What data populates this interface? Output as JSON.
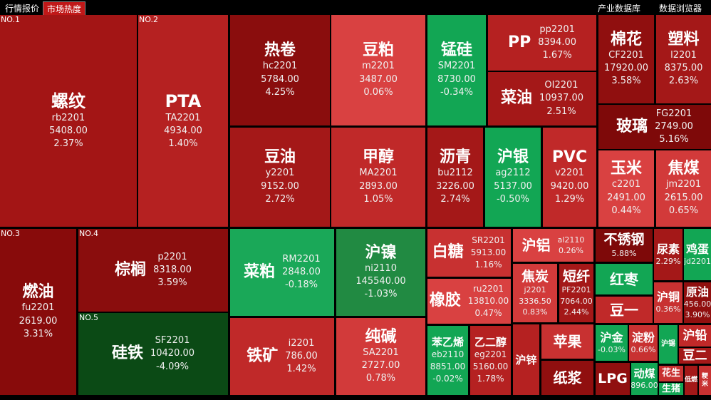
{
  "topbar": {
    "tabs": [
      "行情报价",
      "市场热度"
    ],
    "links": [
      "产业数据库",
      "数据浏览器"
    ]
  },
  "tiles": [
    {
      "name": "螺纹",
      "code": "rb2201",
      "price": "5408.00",
      "change": "2.37%",
      "rank": "NO.1",
      "color": "#a31515"
    },
    {
      "name": "PTA",
      "code": "TA2201",
      "price": "4934.00",
      "change": "1.40%",
      "rank": "NO.2",
      "color": "#b52121"
    },
    {
      "name": "热卷",
      "code": "hc2201",
      "price": "5784.00",
      "change": "4.25%",
      "color": "#8a0d0d"
    },
    {
      "name": "豆粕",
      "code": "m2201",
      "price": "3487.00",
      "change": "0.06%",
      "color": "#d94141"
    },
    {
      "name": "锰硅",
      "code": "SM2201",
      "price": "8730.00",
      "change": "-0.34%",
      "color": "#12a654"
    },
    {
      "name": "PP",
      "code": "pp2201",
      "price": "8394.00",
      "change": "1.67%",
      "color": "#b52121"
    },
    {
      "name": "菜油",
      "code": "OI2201",
      "price": "10937.00",
      "change": "2.51%",
      "color": "#a41818"
    },
    {
      "name": "棉花",
      "code": "CF2201",
      "price": "17920.00",
      "change": "3.58%",
      "color": "#900f0f"
    },
    {
      "name": "塑料",
      "code": "l2201",
      "price": "8375.00",
      "change": "2.63%",
      "color": "#a41818"
    },
    {
      "name": "玻璃",
      "code": "FG2201",
      "price": "2749.00",
      "change": "5.16%",
      "color": "#7e0909"
    },
    {
      "name": "豆油",
      "code": "y2201",
      "price": "9152.00",
      "change": "2.72%",
      "color": "#a41818"
    },
    {
      "name": "甲醇",
      "code": "MA2201",
      "price": "2893.00",
      "change": "1.05%",
      "color": "#c02929"
    },
    {
      "name": "沥青",
      "code": "bu2112",
      "price": "3226.00",
      "change": "2.74%",
      "color": "#a41818"
    },
    {
      "name": "沪银",
      "code": "ag2112",
      "price": "5137.00",
      "change": "-0.50%",
      "color": "#12a654"
    },
    {
      "name": "PVC",
      "code": "v2201",
      "price": "9420.00",
      "change": "1.29%",
      "color": "#c02929"
    },
    {
      "name": "玉米",
      "code": "c2201",
      "price": "2491.00",
      "change": "0.44%",
      "color": "#d94141"
    },
    {
      "name": "焦煤",
      "code": "jm2201",
      "price": "2615.00",
      "change": "0.65%",
      "color": "#d23a3a"
    },
    {
      "name": "燃油",
      "code": "fu2201",
      "price": "2619.00",
      "change": "3.31%",
      "rank": "NO.3",
      "color": "#880b0b"
    },
    {
      "name": "棕榈",
      "code": "p2201",
      "price": "8318.00",
      "change": "3.59%",
      "rank": "NO.4",
      "color": "#8a0d0d"
    },
    {
      "name": "硅铁",
      "code": "SF2201",
      "price": "10420.00",
      "change": "-4.09%",
      "rank": "NO.5",
      "color": "#0b4a15"
    },
    {
      "name": "菜粕",
      "code": "RM2201",
      "price": "2848.00",
      "change": "-0.18%",
      "color": "#1aa858"
    },
    {
      "name": "沪镍",
      "code": "ni2110",
      "price": "145540.00",
      "change": "-1.03%",
      "color": "#218a42"
    },
    {
      "name": "铁矿",
      "code": "i2201",
      "price": "786.00",
      "change": "1.42%",
      "color": "#c02929"
    },
    {
      "name": "纯碱",
      "code": "SA2201",
      "price": "2727.00",
      "change": "0.78%",
      "color": "#d23a3a"
    },
    {
      "name": "白糖",
      "code": "SR2201",
      "price": "5913.00",
      "change": "1.16%",
      "color": "#c83131"
    },
    {
      "name": "橡胶",
      "code": "ru2201",
      "price": "13810.00",
      "change": "0.47%",
      "color": "#d94141"
    },
    {
      "name": "苯乙烯",
      "code": "eb2110",
      "price": "8851.00",
      "change": "-0.02%",
      "color": "#12a654"
    },
    {
      "name": "乙二醇",
      "code": "eg2201",
      "price": "5160.00",
      "change": "1.78%",
      "color": "#b52121"
    },
    {
      "name": "沪铝",
      "code": "al2110",
      "change": "0.26%",
      "color": "#d94141"
    },
    {
      "name": "焦炭",
      "code": "j2201",
      "price": "3336.50",
      "change": "0.83%",
      "color": "#d23a3a"
    },
    {
      "name": "短纤",
      "code": "PF2201",
      "price": "7064.00",
      "change": "2.44%",
      "color": "#a41818"
    },
    {
      "name": "沪锌",
      "color": "#b52121"
    },
    {
      "name": "苹果",
      "color": "#c83131"
    },
    {
      "name": "纸浆",
      "color": "#900f0f"
    },
    {
      "name": "不锈钢",
      "change": "5.88%",
      "color": "#7e0909"
    },
    {
      "name": "红枣",
      "color": "#12a654"
    },
    {
      "name": "豆一",
      "color": "#c02929"
    },
    {
      "name": "沪金",
      "change": "-0.03%",
      "color": "#12a654"
    },
    {
      "name": "淀粉",
      "change": "0.66%",
      "color": "#c83131"
    },
    {
      "name": "LPG",
      "color": "#900f0f"
    },
    {
      "name": "动煤",
      "price": "896.00",
      "color": "#12a654"
    },
    {
      "name": "尿素",
      "change": "2.29%",
      "color": "#a41818"
    },
    {
      "name": "鸡蛋",
      "code": "jd2201",
      "color": "#12a654"
    },
    {
      "name": "沪铜",
      "change": "0.36%",
      "color": "#c83131"
    },
    {
      "name": "原油",
      "price": "456.00",
      "change": "3.90%",
      "color": "#900f0f"
    },
    {
      "name": "沪锡",
      "color": "#12a654"
    },
    {
      "name": "沪铅",
      "color": "#c02929"
    },
    {
      "name": "豆二",
      "color": "#a41818"
    },
    {
      "name": "花生",
      "color": "#c83131"
    },
    {
      "name": "生猪",
      "color": "#12a654"
    },
    {
      "name": "低燃",
      "color": "#a41818"
    },
    {
      "name": "粳米",
      "color": "#c83131"
    }
  ]
}
